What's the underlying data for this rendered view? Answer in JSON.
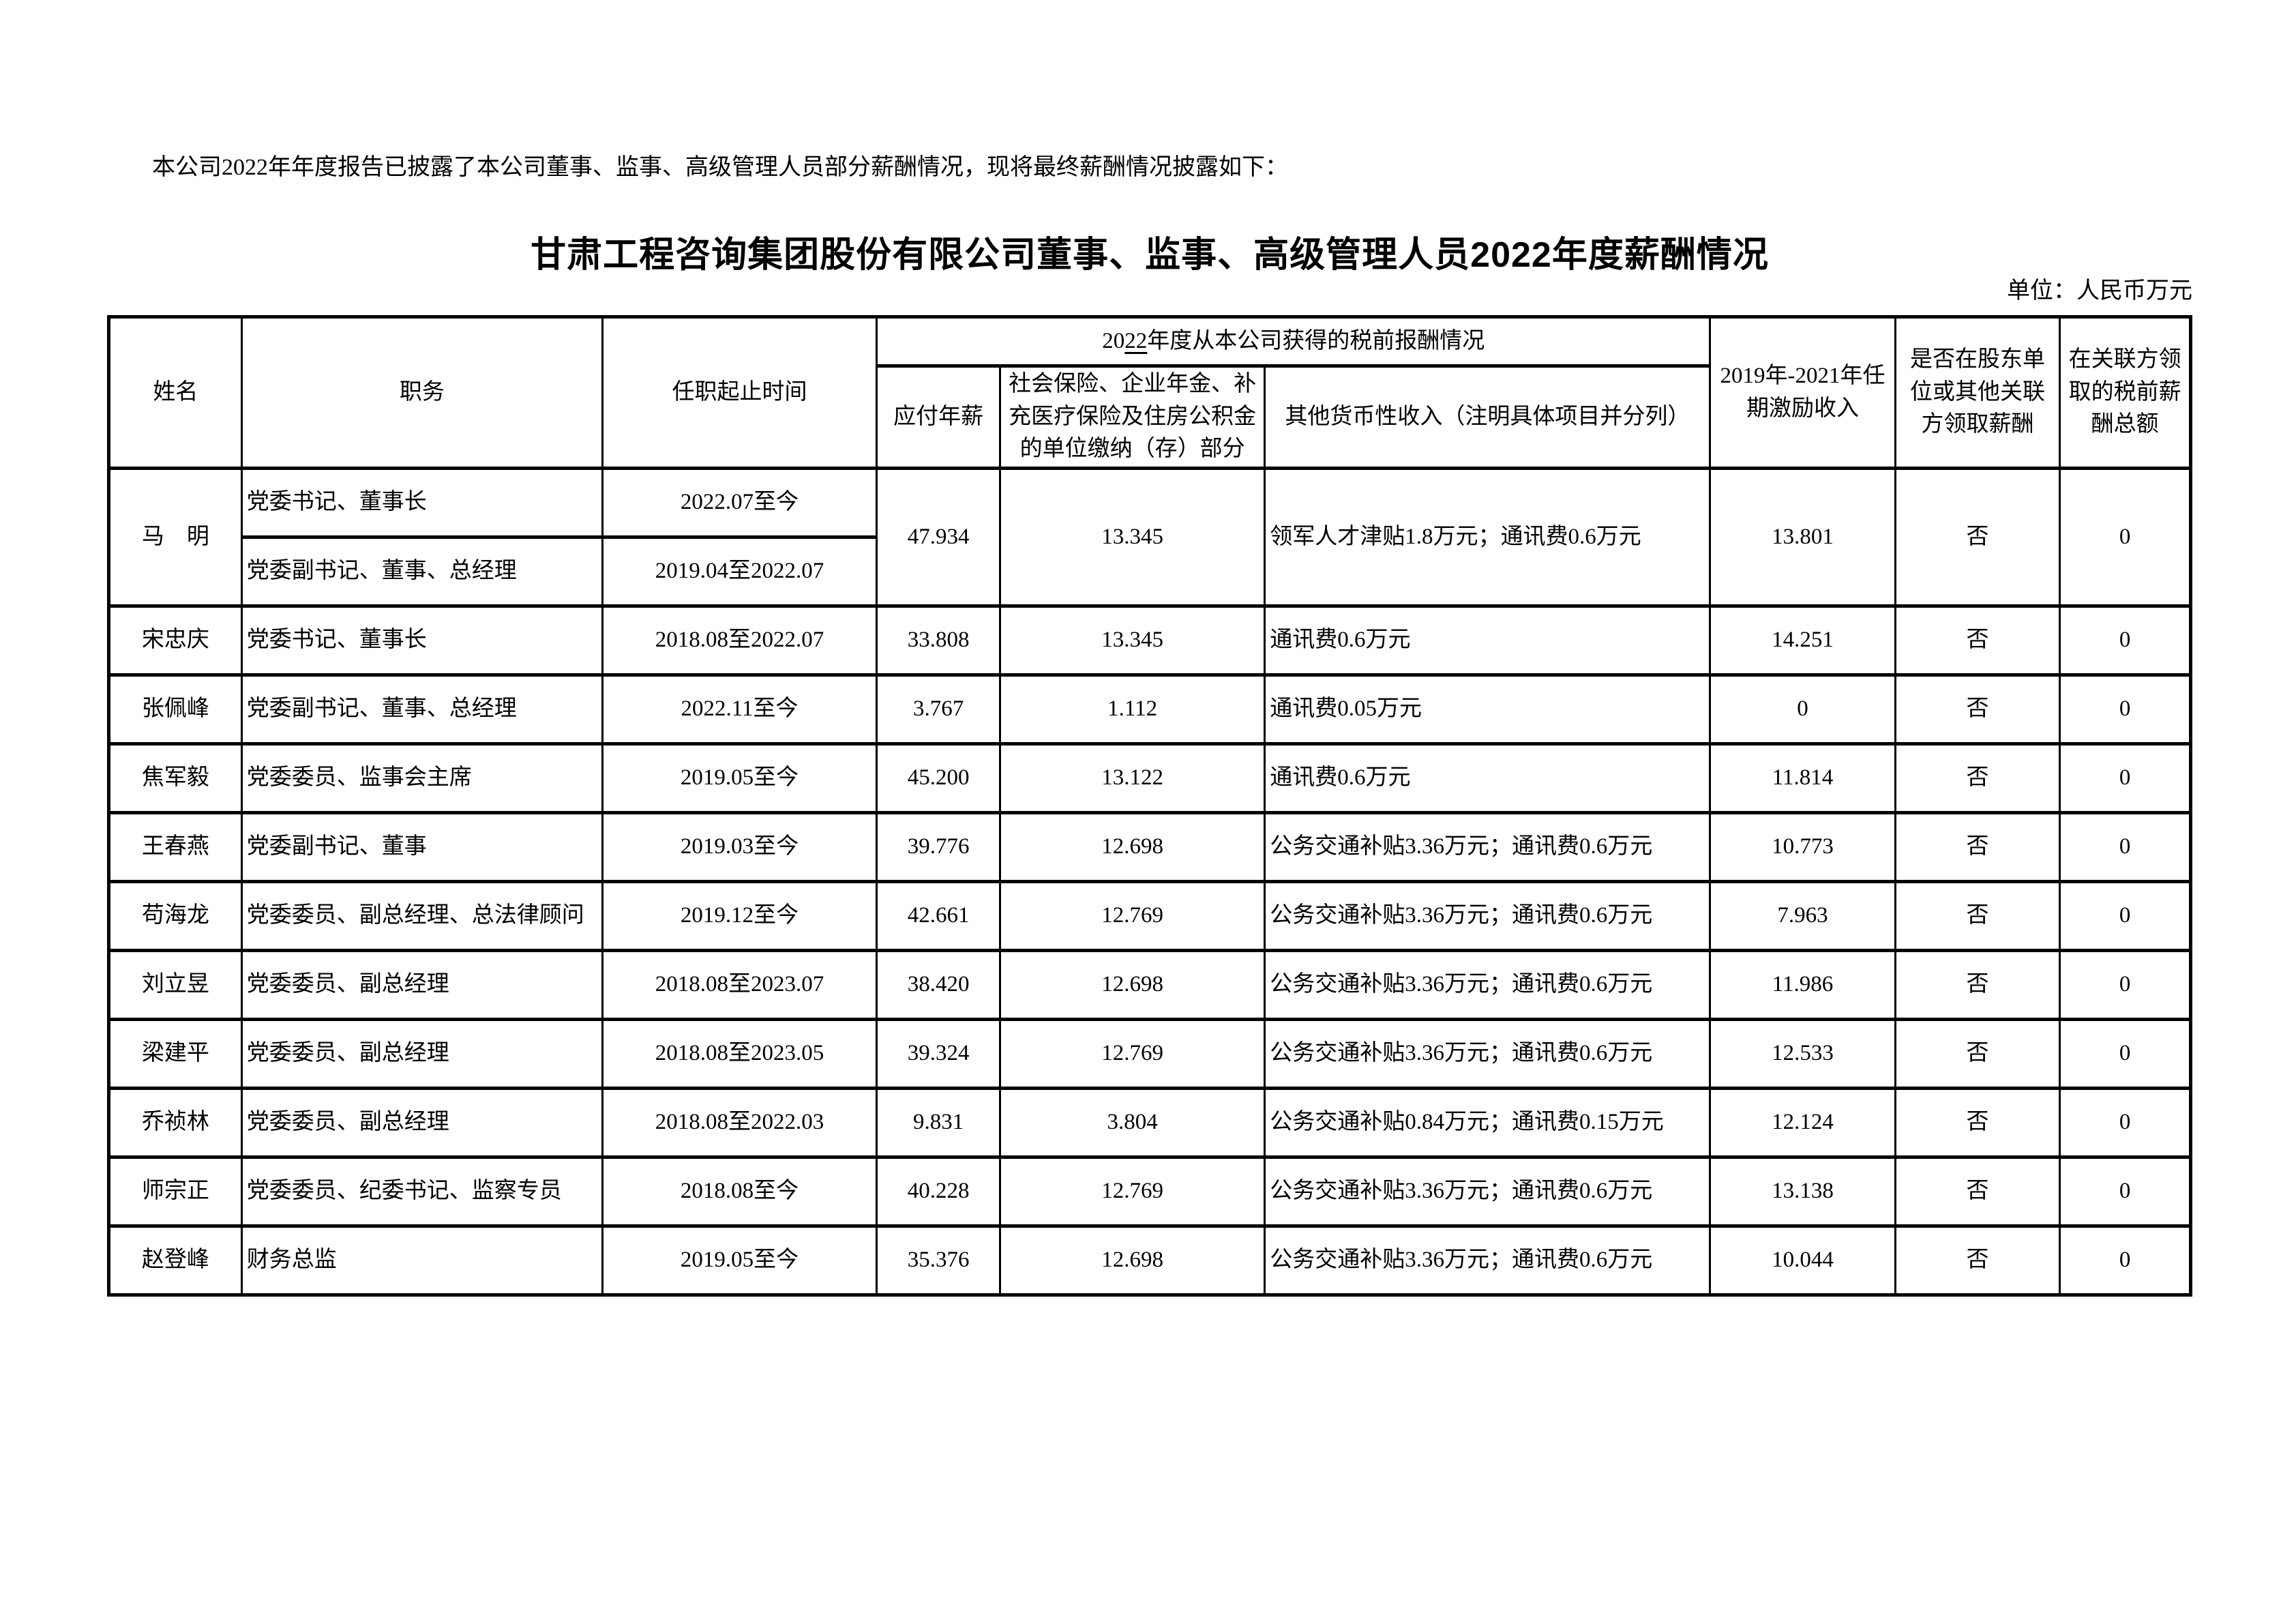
{
  "page": {
    "intro": "本公司2022年年度报告已披露了本公司董事、监事、高级管理人员部分薪酬情况，现将最终薪酬情况披露如下：",
    "title": "甘肃工程咨询集团股份有限公司董事、监事、高级管理人员2022年度薪酬情况",
    "unit_note": "单位：人民币万元"
  },
  "table": {
    "headers": {
      "name": "姓名",
      "position": "职务",
      "tenure": "任职起止时间",
      "pretax_group_pre": "20",
      "pretax_group_underlined": "22",
      "pretax_group_post": "年度从本公司获得的税前报酬情况",
      "annual_pay": "应付年薪",
      "insurance": "社会保险、企业年金、补充医疗保险及住房公积金的单位缴纳（存）部分",
      "other_income": "其他货币性收入（注明具体项目并分列）",
      "incentive": "2019年-2021年任期激励收入",
      "related_party": "是否在股东单位或其他关联方领取薪酬",
      "related_total": "在关联方领取的税前薪酬总额"
    },
    "rows": [
      {
        "name": "马　明",
        "sub": [
          {
            "position": "党委书记、董事长",
            "tenure": "2022.07至今"
          },
          {
            "position": "党委副书记、董事、总经理",
            "tenure": "2019.04至2022.07"
          }
        ],
        "annual_pay": "47.934",
        "insurance": "13.345",
        "other_income": "领军人才津贴1.8万元；通讯费0.6万元",
        "incentive": "13.801",
        "related_party": "否",
        "related_total": "0"
      },
      {
        "name": "宋忠庆",
        "position": "党委书记、董事长",
        "tenure": "2018.08至2022.07",
        "annual_pay": "33.808",
        "insurance": "13.345",
        "other_income": "通讯费0.6万元",
        "incentive": "14.251",
        "related_party": "否",
        "related_total": "0"
      },
      {
        "name": "张佩峰",
        "position": "党委副书记、董事、总经理",
        "tenure": "2022.11至今",
        "annual_pay": "3.767",
        "insurance": "1.112",
        "other_income": "通讯费0.05万元",
        "incentive": "0",
        "related_party": "否",
        "related_total": "0"
      },
      {
        "name": "焦军毅",
        "position": "党委委员、监事会主席",
        "tenure": "2019.05至今",
        "annual_pay": "45.200",
        "insurance": "13.122",
        "other_income": "通讯费0.6万元",
        "incentive": "11.814",
        "related_party": "否",
        "related_total": "0"
      },
      {
        "name": "王春燕",
        "position": "党委副书记、董事",
        "tenure": "2019.03至今",
        "annual_pay": "39.776",
        "insurance": "12.698",
        "other_income": "公务交通补贴3.36万元；通讯费0.6万元",
        "incentive": "10.773",
        "related_party": "否",
        "related_total": "0"
      },
      {
        "name": "苟海龙",
        "position": "党委委员、副总经理、总法律顾问",
        "tenure": "2019.12至今",
        "annual_pay": "42.661",
        "insurance": "12.769",
        "other_income": "公务交通补贴3.36万元；通讯费0.6万元",
        "incentive": "7.963",
        "related_party": "否",
        "related_total": "0"
      },
      {
        "name": "刘立昱",
        "position": "党委委员、副总经理",
        "tenure": "2018.08至2023.07",
        "annual_pay": "38.420",
        "insurance": "12.698",
        "other_income": "公务交通补贴3.36万元；通讯费0.6万元",
        "incentive": "11.986",
        "related_party": "否",
        "related_total": "0"
      },
      {
        "name": "梁建平",
        "position": "党委委员、副总经理",
        "tenure": "2018.08至2023.05",
        "annual_pay": "39.324",
        "insurance": "12.769",
        "other_income": "公务交通补贴3.36万元；通讯费0.6万元",
        "incentive": "12.533",
        "related_party": "否",
        "related_total": "0"
      },
      {
        "name": "乔祯林",
        "position": "党委委员、副总经理",
        "tenure": "2018.08至2022.03",
        "annual_pay": "9.831",
        "insurance": "3.804",
        "other_income": "公务交通补贴0.84万元；通讯费0.15万元",
        "incentive": "12.124",
        "related_party": "否",
        "related_total": "0"
      },
      {
        "name": "师宗正",
        "position": "党委委员、纪委书记、监察专员",
        "tenure": "2018.08至今",
        "annual_pay": "40.228",
        "insurance": "12.769",
        "other_income": "公务交通补贴3.36万元；通讯费0.6万元",
        "incentive": "13.138",
        "related_party": "否",
        "related_total": "0"
      },
      {
        "name": "赵登峰",
        "position": "财务总监",
        "tenure": "2019.05至今",
        "annual_pay": "35.376",
        "insurance": "12.698",
        "other_income": "公务交通补贴3.36万元；通讯费0.6万元",
        "incentive": "10.044",
        "related_party": "否",
        "related_total": "0"
      }
    ]
  }
}
